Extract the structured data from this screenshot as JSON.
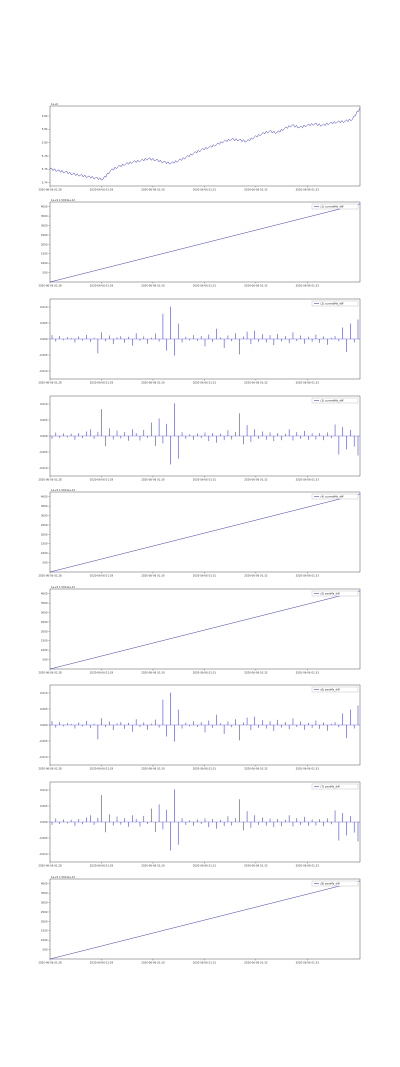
{
  "chart_data": [
    {
      "type": "line",
      "render": "line",
      "scale_note": "1e+6",
      "legend": [],
      "x_ticks": [
        "2020-06-06 01:28",
        "2020-06-06 01:29",
        "2020-06-06 01:30",
        "2020-06-06 01:31",
        "2020-06-06 01:32",
        "2020-06-06 01:33"
      ],
      "y_ticks": [
        "5.74",
        "5.76",
        "5.78",
        "5.80",
        "5.82",
        "5.84"
      ],
      "ylim": [
        5.735,
        5.855
      ],
      "series": [
        {
          "name": "",
          "y": [
            5.761,
            5.758,
            5.756,
            5.753,
            5.751,
            5.749,
            5.747,
            5.745,
            5.758,
            5.764,
            5.768,
            5.771,
            5.773,
            5.776,
            5.774,
            5.771,
            5.769,
            5.773,
            5.778,
            5.784,
            5.789,
            5.793,
            5.797,
            5.802,
            5.805,
            5.804,
            5.802,
            5.808,
            5.813,
            5.817,
            5.815,
            5.821,
            5.826,
            5.823,
            5.826,
            5.828,
            5.826,
            5.829,
            5.831,
            5.832,
            5.835,
            5.852
          ]
        }
      ],
      "color": "#1f1fe6"
    },
    {
      "type": "line",
      "render": "line",
      "scale_note": "1e+9 1.5914e+12",
      "legend": [
        "(1) currentMs_diff"
      ],
      "x_ticks": [
        "2020-06-06 01:28",
        "2020-06-06 01:29",
        "2020-06-06 01:30",
        "2020-06-06 01:31",
        "2020-06-06 01:32",
        "2020-06-06 01:33"
      ],
      "y_ticks": [
        "500",
        "1000",
        "1500",
        "2000",
        "2500",
        "3000",
        "3500",
        "4000"
      ],
      "ylim": [
        0,
        4250
      ],
      "series": [
        {
          "name": "(1) currentMs_diff",
          "y": [
            0,
            4150
          ]
        }
      ],
      "color": "#1f1fe6"
    },
    {
      "type": "bar",
      "render": "spikes",
      "scale_note": "",
      "legend": [
        "(2) currentMs_diff"
      ],
      "x_ticks": [
        "2020-06-06 01:28",
        "2020-06-06 01:29",
        "2020-06-06 01:30",
        "2020-06-06 01:31",
        "2020-06-06 01:32",
        "2020-06-06 01:33"
      ],
      "y_ticks": [
        "-0.010",
        "-0.005",
        "0.000",
        "0.005",
        "0.010"
      ],
      "ylim": [
        -0.0125,
        0.0125
      ],
      "series": [
        {
          "name": "(2) currentMs_diff",
          "y": [
            0.0012,
            -0.0008,
            0.0009,
            -0.0004,
            0.0006,
            0.0003,
            -0.0011,
            0.0008,
            -0.0005,
            0.0013,
            -0.0009,
            0.0004,
            -0.0045,
            0.0021,
            -0.0007,
            0.0011,
            -0.0016,
            0.0005,
            0.0009,
            -0.0012,
            0.0007,
            -0.0021,
            0.0018,
            -0.0006,
            0.0008,
            -0.0015,
            0.0004,
            0.0017,
            -0.0008,
            0.0079,
            -0.0036,
            0.0101,
            -0.0052,
            0.0048,
            -0.0011,
            0.0007,
            -0.0004,
            0.0012,
            -0.0006,
            0.0009,
            -0.0023,
            0.0014,
            -0.0009,
            0.0032,
            0.0005,
            -0.0028,
            0.0011,
            -0.0007,
            0.0018,
            -0.0048,
            0.0008,
            0.0023,
            -0.0016,
            0.0026,
            -0.0009,
            0.0015,
            -0.0011,
            0.0012,
            -0.0019,
            0.0016,
            -0.0008,
            0.0009,
            -0.0013,
            0.0021,
            -0.0006,
            0.0011,
            -0.0015,
            0.0007,
            -0.0009,
            0.0014,
            -0.0012,
            0.0008,
            -0.0018,
            0.0004,
            0.0009,
            -0.0007,
            0.0036,
            -0.0041,
            0.0048,
            -0.0011,
            0.0061
          ]
        }
      ],
      "color": "#1f1fe6"
    },
    {
      "type": "bar",
      "render": "spikes",
      "scale_note": "",
      "legend": [
        "(3) currentMs_diff"
      ],
      "x_ticks": [
        "2020-06-06 01:28",
        "2020-06-06 01:29",
        "2020-06-06 01:30",
        "2020-06-06 01:31",
        "2020-06-06 01:32",
        "2020-06-06 01:33"
      ],
      "y_ticks": [
        "-0.010",
        "-0.005",
        "0.000",
        "0.005",
        "0.010"
      ],
      "ylim": [
        -0.0125,
        0.0125
      ],
      "series": [
        {
          "name": "(3) currentMs_diff",
          "y": [
            -0.0009,
            0.0011,
            -0.0006,
            0.0008,
            -0.0004,
            0.0007,
            -0.0012,
            0.0009,
            -0.0007,
            0.0014,
            0.0021,
            -0.0009,
            0.0013,
            0.0084,
            -0.0032,
            0.0024,
            -0.0011,
            0.0017,
            -0.0008,
            0.0012,
            -0.0015,
            0.0021,
            0.0009,
            -0.0014,
            0.0019,
            -0.0006,
            0.0042,
            -0.0031,
            0.0055,
            -0.0023,
            0.0038,
            -0.0089,
            0.0102,
            -0.0071,
            0.0012,
            -0.0009,
            0.0005,
            -0.0012,
            0.0008,
            -0.0006,
            0.0011,
            -0.0016,
            0.0009,
            -0.0021,
            0.0007,
            -0.0013,
            0.0018,
            -0.0011,
            0.0012,
            0.0071,
            -0.0026,
            0.0034,
            -0.0018,
            0.0021,
            -0.0009,
            0.0014,
            -0.0012,
            0.0011,
            -0.0016,
            0.0009,
            -0.0013,
            0.0007,
            0.0021,
            -0.0014,
            0.0012,
            -0.0009,
            0.0016,
            -0.0012,
            0.0008,
            -0.0011,
            0.0009,
            -0.0013,
            0.0011,
            -0.0007,
            0.0036,
            -0.0058,
            0.0028,
            -0.0042,
            0.0019,
            -0.0033,
            -0.0061
          ]
        }
      ],
      "color": "#1f1fe6"
    },
    {
      "type": "line",
      "render": "line",
      "scale_note": "1e+9 1.5914e+12",
      "legend": [
        "(4) currentMs_diff"
      ],
      "x_ticks": [
        "2020-06-06 01:28",
        "2020-06-06 01:29",
        "2020-06-06 01:30",
        "2020-06-06 01:31",
        "2020-06-06 01:32",
        "2020-06-06 01:33"
      ],
      "y_ticks": [
        "500",
        "1000",
        "1500",
        "2000",
        "2500",
        "3000",
        "3500",
        "4000"
      ],
      "ylim": [
        0,
        4250
      ],
      "series": [
        {
          "name": "(4) currentMs_diff",
          "y": [
            0,
            4150
          ]
        }
      ],
      "color": "#1f1fe6"
    },
    {
      "type": "line",
      "render": "line",
      "scale_note": "1e+9 1.5914e+12",
      "legend": [
        "(5) zeroMs_diff"
      ],
      "x_ticks": [
        "2020-06-06 01:28",
        "2020-06-06 01:29",
        "2020-06-06 01:30",
        "2020-06-06 01:31",
        "2020-06-06 01:32",
        "2020-06-06 01:33"
      ],
      "y_ticks": [
        "500",
        "1000",
        "1500",
        "2000",
        "2500",
        "3000",
        "3500",
        "4000"
      ],
      "ylim": [
        0,
        4250
      ],
      "series": [
        {
          "name": "(5) zeroMs_diff",
          "y": [
            0,
            4150
          ]
        }
      ],
      "color": "#1f1fe6"
    },
    {
      "type": "bar",
      "render": "spikes",
      "scale_note": "",
      "legend": [
        "(6) zeroMs_diff"
      ],
      "x_ticks": [
        "2020-06-06 01:28",
        "2020-06-06 01:29",
        "2020-06-06 01:30",
        "2020-06-06 01:31",
        "2020-06-06 01:32",
        "2020-06-06 01:33"
      ],
      "y_ticks": [
        "-0.010",
        "-0.005",
        "0.000",
        "0.005",
        "0.010"
      ],
      "ylim": [
        -0.0125,
        0.0125
      ],
      "series": [
        {
          "name": "(6) zeroMs_diff",
          "y": [
            0.0012,
            -0.0008,
            0.0009,
            -0.0004,
            0.0006,
            0.0003,
            -0.0011,
            0.0008,
            -0.0005,
            0.0013,
            -0.0009,
            0.0004,
            -0.0045,
            0.0021,
            -0.0007,
            0.0011,
            -0.0016,
            0.0005,
            0.0009,
            -0.0012,
            0.0007,
            -0.0021,
            0.0018,
            -0.0006,
            0.0008,
            -0.0015,
            0.0004,
            0.0017,
            -0.0008,
            0.0079,
            -0.0036,
            0.0101,
            -0.0052,
            0.0048,
            -0.0011,
            0.0007,
            -0.0004,
            0.0012,
            -0.0006,
            0.0009,
            -0.0023,
            0.0014,
            -0.0009,
            0.0032,
            0.0005,
            -0.0028,
            0.0011,
            -0.0007,
            0.0018,
            -0.0048,
            0.0008,
            0.0023,
            -0.0016,
            0.0026,
            -0.0009,
            0.0015,
            -0.0011,
            0.0012,
            -0.0019,
            0.0016,
            -0.0008,
            0.0009,
            -0.0013,
            0.0021,
            -0.0006,
            0.0011,
            -0.0015,
            0.0007,
            -0.0009,
            0.0014,
            -0.0012,
            0.0008,
            -0.0018,
            0.0004,
            0.0009,
            -0.0007,
            0.0036,
            -0.0041,
            0.0048,
            -0.0011,
            0.0061
          ]
        }
      ],
      "color": "#1f1fe6"
    },
    {
      "type": "bar",
      "render": "spikes",
      "scale_note": "",
      "legend": [
        "(7) zeroMs_diff"
      ],
      "x_ticks": [
        "2020-06-06 01:28",
        "2020-06-06 01:29",
        "2020-06-06 01:30",
        "2020-06-06 01:31",
        "2020-06-06 01:32",
        "2020-06-06 01:33"
      ],
      "y_ticks": [
        "-0.010",
        "-0.005",
        "0.000",
        "0.005",
        "0.010"
      ],
      "ylim": [
        -0.0125,
        0.0125
      ],
      "series": [
        {
          "name": "(7) zeroMs_diff",
          "y": [
            -0.0009,
            0.0011,
            -0.0006,
            0.0008,
            -0.0004,
            0.0007,
            -0.0012,
            0.0009,
            -0.0007,
            0.0014,
            0.0021,
            -0.0009,
            0.0013,
            0.0084,
            -0.0032,
            0.0024,
            -0.0011,
            0.0017,
            -0.0008,
            0.0012,
            -0.0015,
            0.0021,
            0.0009,
            -0.0014,
            0.0019,
            -0.0006,
            0.0042,
            -0.0031,
            0.0055,
            -0.0023,
            0.0038,
            -0.0089,
            0.0102,
            -0.0071,
            0.0012,
            -0.0009,
            0.0005,
            -0.0012,
            0.0008,
            -0.0006,
            0.0011,
            -0.0016,
            0.0009,
            -0.0021,
            0.0007,
            -0.0013,
            0.0018,
            -0.0011,
            0.0012,
            0.0071,
            -0.0026,
            0.0034,
            -0.0018,
            0.0021,
            -0.0009,
            0.0014,
            -0.0012,
            0.0011,
            -0.0016,
            0.0009,
            -0.0013,
            0.0007,
            0.0021,
            -0.0014,
            0.0012,
            -0.0009,
            0.0016,
            -0.0012,
            0.0008,
            -0.0011,
            0.0009,
            -0.0013,
            0.0011,
            -0.0007,
            0.0036,
            -0.0058,
            0.0028,
            -0.0042,
            0.0019,
            -0.0033,
            -0.0061
          ]
        }
      ],
      "color": "#1f1fe6"
    },
    {
      "type": "line",
      "render": "line",
      "scale_note": "1e+9 1.5914e+12",
      "legend": [
        "(8) zeroMs_diff"
      ],
      "x_ticks": [
        "2020-06-06 01:28",
        "2020-06-06 01:29",
        "2020-06-06 01:30",
        "2020-06-06 01:31",
        "2020-06-06 01:32",
        "2020-06-06 01:33"
      ],
      "y_ticks": [
        "500",
        "1000",
        "1500",
        "2000",
        "2500",
        "3000",
        "3500",
        "4000"
      ],
      "ylim": [
        0,
        4250
      ],
      "series": [
        {
          "name": "(8) zeroMs_diff",
          "y": [
            0,
            4150
          ]
        }
      ],
      "color": "#1f1fe6"
    }
  ]
}
